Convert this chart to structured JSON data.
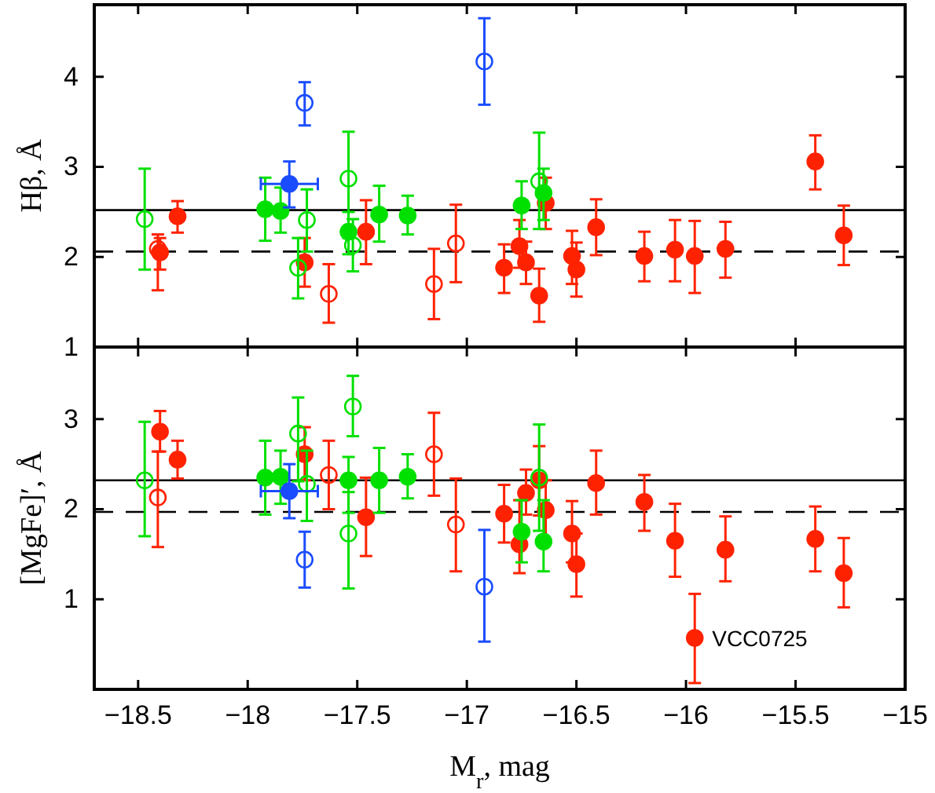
{
  "chart_data": [
    {
      "type": "scatter",
      "ylabel": "Hβ, Å",
      "xlim": [
        -18.7,
        -15
      ],
      "ylim": [
        1,
        4.8
      ],
      "xticks": [
        {
          "value": -18.5,
          "label": null
        },
        {
          "value": -18,
          "label": null
        },
        {
          "value": -17.5,
          "label": null
        },
        {
          "value": -17,
          "label": null
        },
        {
          "value": -16.5,
          "label": null
        },
        {
          "value": -16,
          "label": null
        },
        {
          "value": -15.5,
          "label": null
        },
        {
          "value": -15,
          "label": null
        }
      ],
      "yticks": [
        1,
        2,
        3,
        4
      ],
      "tick_labels": "y",
      "ref_lines": [
        {
          "axis": "y",
          "value": 2.52,
          "color": "#000000",
          "line_style": "solid"
        },
        {
          "axis": "y",
          "value": 2.06,
          "color": "#000000",
          "line_style": "dashed"
        }
      ],
      "series": [
        {
          "color": "#ff2200",
          "marker": "circle",
          "x": [
            -18.4,
            -18.32,
            -17.74,
            -17.46,
            -16.83,
            -16.76,
            -16.73,
            -16.67,
            -16.64,
            -16.52,
            -16.5,
            -16.41,
            -16.19,
            -16.05,
            -15.96,
            -15.82,
            -15.41,
            -15.28
          ],
          "values": [
            2.05,
            2.45,
            1.94,
            2.28,
            1.88,
            2.12,
            1.94,
            1.57,
            2.6,
            2.01,
            1.86,
            2.33,
            2.01,
            2.08,
            2.01,
            2.09,
            3.06,
            2.24
          ],
          "errors": [
            [
              1.86,
              2.21
            ],
            [
              2.27,
              2.62
            ],
            [
              1.67,
              2.21
            ],
            [
              1.92,
              2.63
            ],
            [
              1.6,
              2.14
            ],
            [
              1.88,
              2.41
            ],
            [
              1.7,
              2.17
            ],
            [
              1.28,
              1.87
            ],
            [
              2.31,
              2.88
            ],
            [
              1.7,
              2.29
            ],
            [
              1.56,
              2.16
            ],
            [
              2.02,
              2.64
            ],
            [
              1.73,
              2.28
            ],
            [
              1.73,
              2.41
            ],
            [
              1.6,
              2.4
            ],
            [
              1.77,
              2.39
            ],
            [
              2.75,
              3.35
            ],
            [
              1.91,
              2.57
            ]
          ]
        },
        {
          "color": "#ff2200",
          "marker": "circle-open",
          "x": [
            -18.41,
            -17.63,
            -17.15,
            -17.05
          ],
          "values": [
            2.09,
            1.59,
            1.7,
            2.15
          ],
          "errors": [
            [
              1.63,
              2.25
            ],
            [
              1.27,
              1.92
            ],
            [
              1.31,
              2.09
            ],
            [
              1.72,
              2.58
            ]
          ]
        },
        {
          "color": "#00e000",
          "marker": "circle",
          "x": [
            -17.92,
            -17.85,
            -17.54,
            -17.4,
            -17.27,
            -16.75,
            -16.65
          ],
          "values": [
            2.53,
            2.51,
            2.28,
            2.47,
            2.46,
            2.57,
            2.71
          ],
          "errors": [
            [
              2.18,
              2.88
            ],
            [
              2.27,
              2.77
            ],
            [
              2.03,
              2.5
            ],
            [
              2.17,
              2.79
            ],
            [
              2.25,
              2.68
            ],
            [
              2.31,
              2.84
            ],
            [
              2.41,
              2.98
            ]
          ]
        },
        {
          "color": "#00e000",
          "marker": "circle-open",
          "x": [
            -18.47,
            -17.77,
            -17.73,
            -17.54,
            -17.52,
            -16.67
          ],
          "values": [
            2.42,
            1.88,
            2.41,
            2.87,
            2.13,
            2.84
          ],
          "errors": [
            [
              1.86,
              2.98
            ],
            [
              1.54,
              2.21
            ],
            [
              2.06,
              2.75
            ],
            [
              2.21,
              3.39
            ],
            [
              1.84,
              2.42
            ],
            [
              2.31,
              3.38
            ]
          ]
        },
        {
          "color": "#1a4cff",
          "marker": "circle",
          "x": [
            -17.81
          ],
          "values": [
            2.81
          ],
          "errors": [
            [
              2.55,
              3.06
            ]
          ],
          "xerrors": [
            [
              -17.94,
              -17.68
            ]
          ]
        },
        {
          "color": "#1a4cff",
          "marker": "circle-open",
          "x": [
            -17.74,
            -16.92
          ],
          "values": [
            3.71,
            4.17
          ],
          "errors": [
            [
              3.46,
              3.94
            ],
            [
              3.69,
              4.65
            ]
          ]
        }
      ]
    },
    {
      "type": "scatter",
      "ylabel": "[MgFe]′, Å",
      "xlabel": "M$_{r}$, mag",
      "xlim": [
        -18.7,
        -15
      ],
      "ylim": [
        0,
        3.8
      ],
      "xticks": [
        {
          "value": -18.5,
          "label": "−18.5"
        },
        {
          "value": -18,
          "label": "−18"
        },
        {
          "value": -17.5,
          "label": "−17.5"
        },
        {
          "value": -17,
          "label": "−17"
        },
        {
          "value": -16.5,
          "label": "−16.5"
        },
        {
          "value": -16,
          "label": "−16"
        },
        {
          "value": -15.5,
          "label": "−15.5"
        },
        {
          "value": -15,
          "label": "−15"
        }
      ],
      "yticks": [
        1,
        2,
        3
      ],
      "ref_lines": [
        {
          "axis": "y",
          "value": 2.32,
          "color": "#000000",
          "line_style": "solid"
        },
        {
          "axis": "y",
          "value": 1.97,
          "color": "#000000",
          "line_style": "dashed"
        }
      ],
      "annotations": [
        {
          "text": "VCC0725",
          "x": -15.96,
          "y": 0.57
        }
      ],
      "series": [
        {
          "color": "#ff2200",
          "marker": "circle",
          "x": [
            -18.4,
            -18.32,
            -17.74,
            -17.46,
            -16.83,
            -16.76,
            -16.73,
            -16.67,
            -16.64,
            -16.52,
            -16.5,
            -16.41,
            -16.19,
            -16.05,
            -15.96,
            -15.82,
            -15.41,
            -15.28
          ],
          "values": [
            2.86,
            2.55,
            2.61,
            1.91,
            1.95,
            1.61,
            2.18,
            2.32,
            1.99,
            1.73,
            1.39,
            2.29,
            2.08,
            1.65,
            0.57,
            1.55,
            1.67,
            1.29
          ],
          "errors": [
            [
              2.64,
              3.09
            ],
            [
              2.34,
              2.76
            ],
            [
              2.32,
              2.91
            ],
            [
              1.48,
              2.35
            ],
            [
              1.63,
              2.27
            ],
            [
              1.29,
              2.1
            ],
            [
              1.94,
              2.44
            ],
            [
              1.93,
              2.7
            ],
            [
              1.63,
              2.32
            ],
            [
              1.41,
              2.09
            ],
            [
              1.03,
              1.73
            ],
            [
              1.94,
              2.65
            ],
            [
              1.76,
              2.38
            ],
            [
              1.25,
              2.06
            ],
            [
              0.07,
              1.06
            ],
            [
              1.2,
              1.92
            ],
            [
              1.31,
              2.03
            ],
            [
              0.91,
              1.68
            ]
          ]
        },
        {
          "color": "#ff2200",
          "marker": "circle-open",
          "x": [
            -18.41,
            -17.63,
            -17.15,
            -17.05
          ],
          "values": [
            2.13,
            2.38,
            2.61,
            1.83
          ],
          "errors": [
            [
              1.58,
              2.64
            ],
            [
              2.0,
              2.76
            ],
            [
              2.15,
              3.07
            ],
            [
              1.31,
              2.34
            ]
          ]
        },
        {
          "color": "#00e000",
          "marker": "circle",
          "x": [
            -17.92,
            -17.85,
            -17.54,
            -17.4,
            -17.27,
            -16.75,
            -16.65
          ],
          "values": [
            2.35,
            2.36,
            2.32,
            2.32,
            2.36,
            1.75,
            1.64
          ],
          "errors": [
            [
              1.94,
              2.76
            ],
            [
              2.06,
              2.65
            ],
            [
              1.96,
              2.58
            ],
            [
              1.96,
              2.68
            ],
            [
              2.12,
              2.61
            ],
            [
              1.41,
              2.1
            ],
            [
              1.31,
              2.1
            ]
          ]
        },
        {
          "color": "#00e000",
          "marker": "circle-open",
          "x": [
            -18.47,
            -17.77,
            -17.73,
            -17.54,
            -17.52,
            -16.67
          ],
          "values": [
            2.32,
            2.84,
            2.28,
            1.73,
            3.14,
            2.35
          ],
          "errors": [
            [
              1.7,
              2.97
            ],
            [
              2.31,
              3.24
            ],
            [
              1.87,
              2.65
            ],
            [
              1.12,
              2.19
            ],
            [
              2.81,
              3.48
            ],
            [
              1.76,
              2.94
            ]
          ]
        },
        {
          "color": "#1a4cff",
          "marker": "circle",
          "x": [
            -17.81
          ],
          "values": [
            2.2
          ],
          "errors": [
            [
              1.9,
              2.5
            ]
          ],
          "xerrors": [
            [
              -17.94,
              -17.68
            ]
          ]
        },
        {
          "color": "#1a4cff",
          "marker": "circle-open",
          "x": [
            -17.74,
            -16.92
          ],
          "values": [
            1.44,
            1.14
          ],
          "errors": [
            [
              1.13,
              1.75
            ],
            [
              0.53,
              1.77
            ]
          ]
        }
      ]
    }
  ]
}
